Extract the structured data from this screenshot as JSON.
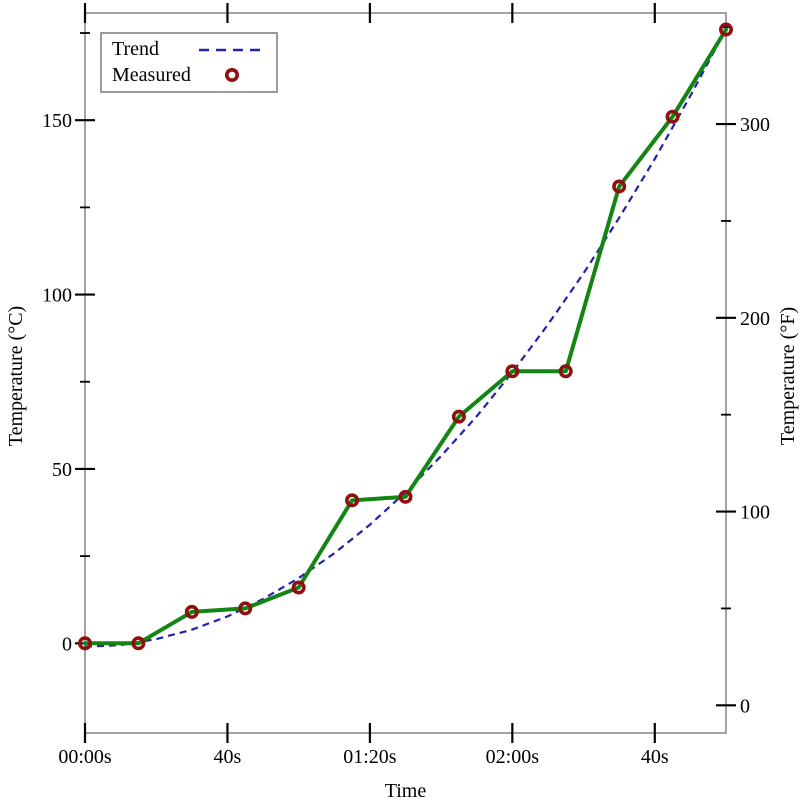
{
  "figure": {
    "background": "#ffffff",
    "colors": {
      "trend": "#2323aa",
      "measured_line": "#148414",
      "measured_marker": "#8e1111",
      "frame": "#8c8c8c",
      "tick": "#000000",
      "text": "#000000",
      "legend_border": "#9a9a9a"
    },
    "legend": {
      "position": "top-left",
      "items": [
        {
          "label": "Trend",
          "sample": "dashed-line"
        },
        {
          "label": "Measured",
          "sample": "open-circle-marker"
        }
      ]
    }
  },
  "chart_data": {
    "type": "line",
    "title": "",
    "xlabel": "Time",
    "ylabel_left": "Temperature (°C)",
    "ylabel_right": "Temperature (°F)",
    "x_unit": "seconds",
    "xlim": [
      0,
      180
    ],
    "ylim_left_celsius": [
      -26,
      181
    ],
    "ylim_right_fahrenheit": [
      -14.8,
      357.8
    ],
    "grid": false,
    "legend_position": "top-left",
    "x_ticks": {
      "values": [
        0,
        40,
        80,
        120,
        160
      ],
      "labels": [
        "00:00s",
        "40s",
        "01:20s",
        "02:00s",
        "40s"
      ]
    },
    "y_ticks_left": {
      "major_values": [
        0,
        50,
        100,
        150
      ],
      "major_labels": [
        "0",
        "50",
        "100",
        "150"
      ],
      "minor_values": [
        25,
        75,
        125,
        175
      ]
    },
    "y_ticks_right": {
      "major_values": [
        0,
        100,
        200,
        300
      ],
      "major_labels": [
        "0",
        "100",
        "200",
        "300"
      ],
      "minor_values": [
        50,
        150,
        250,
        350
      ]
    },
    "series": [
      {
        "name": "Trend",
        "style": "dashed",
        "color": "#2323aa",
        "x": [
          0,
          10,
          20,
          30,
          40,
          50,
          60,
          70,
          80,
          90,
          100,
          110,
          120,
          130,
          140,
          150,
          160,
          170,
          180
        ],
        "y_celsius": [
          -1.0,
          -0.5,
          1.2,
          3.9,
          7.7,
          12.7,
          18.7,
          25.8,
          34.0,
          43.3,
          53.7,
          65.1,
          77.7,
          91.4,
          106.1,
          122.0,
          138.9,
          157.0,
          176.1
        ]
      },
      {
        "name": "Measured",
        "style": "solid_line_with_open_circle_markers",
        "line_color": "#148414",
        "marker_color": "#8e1111",
        "x": [
          0,
          15,
          30,
          45,
          60,
          75,
          90,
          105,
          120,
          135,
          150,
          165,
          180
        ],
        "y_celsius": [
          0,
          0,
          9,
          10,
          16,
          41,
          42,
          65,
          78,
          78,
          131,
          151,
          176
        ]
      }
    ]
  }
}
